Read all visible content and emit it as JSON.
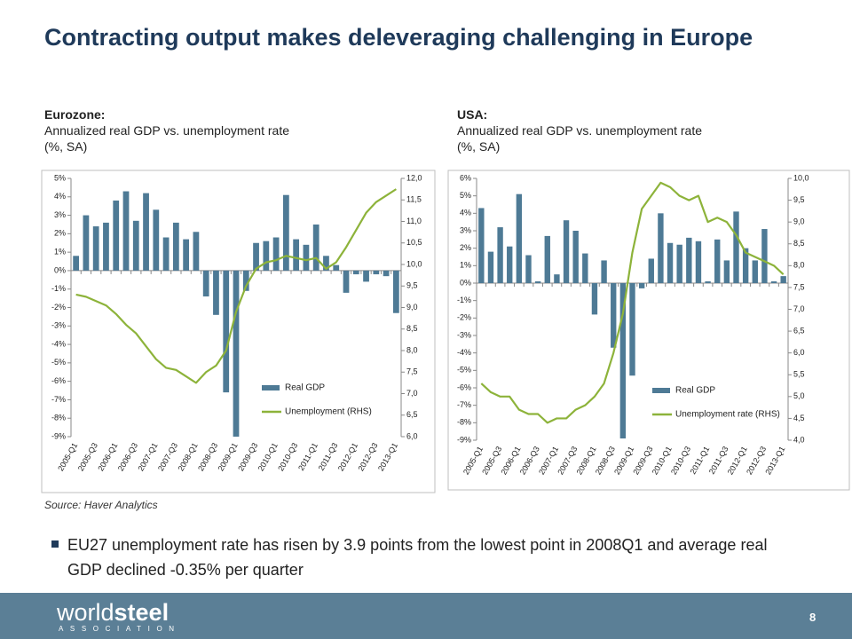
{
  "slide": {
    "title": "Contracting output makes deleveraging challenging in Europe",
    "source": "Source: Haver Analytics",
    "bullet": "EU27 unemployment rate has risen by 3.9 points from the lowest point in 2008Q1 and average real GDP declined -0.35% per quarter",
    "logo_world": "world",
    "logo_steel": "steel",
    "logo_sub": "ASSOCIATION",
    "page_number": "8"
  },
  "chart_data": [
    {
      "type": "bar_line",
      "title": "Eurozone:",
      "subtitle_lines": [
        "Annualized real GDP vs. unemployment rate",
        "(%, SA)"
      ],
      "categories": [
        "2005-Q1",
        null,
        "2005-Q3",
        null,
        "2006-Q1",
        null,
        "2006-Q3",
        null,
        "2007-Q1",
        null,
        "2007-Q3",
        null,
        "2008-Q1",
        null,
        "2008-Q3",
        null,
        "2009-Q1",
        null,
        "2009-Q3",
        null,
        "2010-Q1",
        null,
        "2010-Q3",
        null,
        "2011-Q1",
        null,
        "2011-Q3",
        null,
        "2012-Q1",
        null,
        "2012-Q3",
        null,
        "2013-Q1"
      ],
      "series": [
        {
          "name": "Real GDP",
          "kind": "bar",
          "color": "#4e7a95",
          "values": [
            0.8,
            3.0,
            2.4,
            2.6,
            3.8,
            4.3,
            2.7,
            4.2,
            3.3,
            1.8,
            2.6,
            1.7,
            2.1,
            -1.4,
            -2.4,
            -6.6,
            -9.0,
            -1.1,
            1.5,
            1.6,
            1.8,
            4.1,
            1.7,
            1.4,
            2.5,
            0.8,
            0.3,
            -1.2,
            -0.2,
            -0.6,
            -0.2,
            -0.3,
            -2.3
          ]
        },
        {
          "name": "Unemployment (RHS)",
          "kind": "line",
          "axis": "y2",
          "color": "#8db33a",
          "values": [
            9.3,
            9.25,
            9.15,
            9.05,
            8.85,
            8.6,
            8.4,
            8.1,
            7.8,
            7.6,
            7.55,
            7.4,
            7.25,
            7.5,
            7.65,
            8.0,
            8.9,
            9.5,
            9.9,
            10.05,
            10.1,
            10.2,
            10.15,
            10.1,
            10.15,
            9.9,
            10.05,
            10.4,
            10.8,
            11.2,
            11.45,
            11.6,
            11.75
          ]
        }
      ],
      "ylim": [
        -9,
        5
      ],
      "yticks": [
        {
          "value": -9,
          "label": "-9%"
        },
        {
          "value": -8,
          "label": "-8%"
        },
        {
          "value": -7,
          "label": "-7%"
        },
        {
          "value": -6,
          "label": "-6%"
        },
        {
          "value": -5,
          "label": "-5%"
        },
        {
          "value": -4,
          "label": "-4%"
        },
        {
          "value": -3,
          "label": "-3%"
        },
        {
          "value": -2,
          "label": "-2%"
        },
        {
          "value": -1,
          "label": "-1%"
        },
        {
          "value": 0,
          "label": "0%"
        },
        {
          "value": 1,
          "label": "1%"
        },
        {
          "value": 2,
          "label": "2%"
        },
        {
          "value": 3,
          "label": "3%"
        },
        {
          "value": 4,
          "label": "4%"
        },
        {
          "value": 5,
          "label": "5%"
        }
      ],
      "y2lim": [
        6,
        12
      ],
      "y2ticks": [
        {
          "value": 6,
          "label": "6,0"
        },
        {
          "value": 6.5,
          "label": "6,5"
        },
        {
          "value": 7,
          "label": "7,0"
        },
        {
          "value": 7.5,
          "label": "7,5"
        },
        {
          "value": 8,
          "label": "8,0"
        },
        {
          "value": 8.5,
          "label": "8,5"
        },
        {
          "value": 9,
          "label": "9,0"
        },
        {
          "value": 9.5,
          "label": "9,5"
        },
        {
          "value": 10,
          "label": "10,0"
        },
        {
          "value": 10.5,
          "label": "10,5"
        },
        {
          "value": 11,
          "label": "11,0"
        },
        {
          "value": 11.5,
          "label": "11,5"
        },
        {
          "value": 12,
          "label": "12,0"
        }
      ],
      "grid": false,
      "legend": "lower right"
    },
    {
      "type": "bar_line",
      "title": "USA:",
      "subtitle_lines": [
        "Annualized real GDP vs. unemployment rate",
        "(%, SA)"
      ],
      "categories": [
        "2005-Q1",
        null,
        "2005-Q3",
        null,
        "2006-Q1",
        null,
        "2006-Q3",
        null,
        "2007-Q1",
        null,
        "2007-Q3",
        null,
        "2008-Q1",
        null,
        "2008-Q3",
        null,
        "2009-Q1",
        null,
        "2009-Q3",
        null,
        "2010-Q1",
        null,
        "2010-Q3",
        null,
        "2011-Q1",
        null,
        "2011-Q3",
        null,
        "2012-Q1",
        null,
        "2012-Q3",
        null,
        "2013-Q1"
      ],
      "series": [
        {
          "name": "Real GDP",
          "kind": "bar",
          "color": "#4e7a95",
          "values": [
            4.3,
            1.8,
            3.2,
            2.1,
            5.1,
            1.6,
            0.1,
            2.7,
            0.5,
            3.6,
            3.0,
            1.7,
            -1.8,
            1.3,
            -3.7,
            -8.9,
            -5.3,
            -0.3,
            1.4,
            4.0,
            2.3,
            2.2,
            2.6,
            2.4,
            0.1,
            2.5,
            1.3,
            4.1,
            2.0,
            1.3,
            3.1,
            0.1,
            0.4
          ]
        },
        {
          "name": "Unemployment rate (RHS)",
          "kind": "line",
          "axis": "y2",
          "color": "#8db33a",
          "values": [
            5.3,
            5.1,
            5.0,
            5.0,
            4.7,
            4.6,
            4.6,
            4.4,
            4.5,
            4.5,
            4.7,
            4.8,
            5.0,
            5.3,
            6.0,
            6.9,
            8.3,
            9.3,
            9.6,
            9.9,
            9.8,
            9.6,
            9.5,
            9.6,
            9.0,
            9.1,
            9.0,
            8.7,
            8.3,
            8.2,
            8.1,
            8.0,
            7.8
          ]
        }
      ],
      "ylim": [
        -9,
        6
      ],
      "yticks": [
        {
          "value": -9,
          "label": "-9%"
        },
        {
          "value": -8,
          "label": "-8%"
        },
        {
          "value": -7,
          "label": "-7%"
        },
        {
          "value": -6,
          "label": "-6%"
        },
        {
          "value": -5,
          "label": "-5%"
        },
        {
          "value": -4,
          "label": "-4%"
        },
        {
          "value": -3,
          "label": "-3%"
        },
        {
          "value": -2,
          "label": "-2%"
        },
        {
          "value": -1,
          "label": "-1%"
        },
        {
          "value": 0,
          "label": "0%"
        },
        {
          "value": 1,
          "label": "1%"
        },
        {
          "value": 2,
          "label": "2%"
        },
        {
          "value": 3,
          "label": "3%"
        },
        {
          "value": 4,
          "label": "4%"
        },
        {
          "value": 5,
          "label": "5%"
        },
        {
          "value": 6,
          "label": "6%"
        }
      ],
      "y2lim": [
        4,
        10
      ],
      "y2ticks": [
        {
          "value": 4,
          "label": "4,0"
        },
        {
          "value": 4.5,
          "label": "4,5"
        },
        {
          "value": 5,
          "label": "5,0"
        },
        {
          "value": 5.5,
          "label": "5,5"
        },
        {
          "value": 6,
          "label": "6,0"
        },
        {
          "value": 6.5,
          "label": "6,5"
        },
        {
          "value": 7,
          "label": "7,0"
        },
        {
          "value": 7.5,
          "label": "7,5"
        },
        {
          "value": 8,
          "label": "8,0"
        },
        {
          "value": 8.5,
          "label": "8,5"
        },
        {
          "value": 9,
          "label": "9,0"
        },
        {
          "value": 9.5,
          "label": "9,5"
        },
        {
          "value": 10,
          "label": "10,0"
        }
      ],
      "grid": false,
      "legend": "lower right"
    }
  ]
}
